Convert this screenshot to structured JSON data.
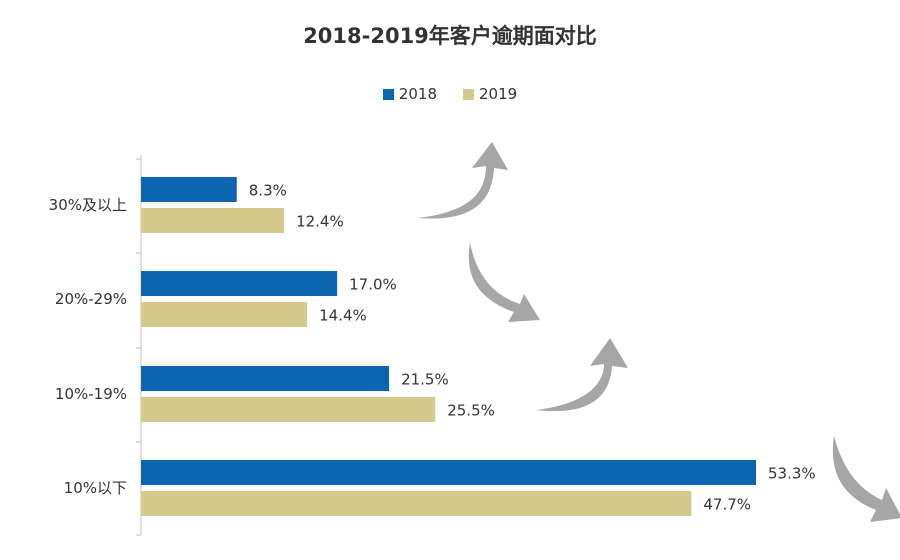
{
  "chart_data": {
    "type": "bar",
    "orientation": "horizontal",
    "title": "2018-2019年客户逾期面对比",
    "categories": [
      "30%及以上",
      "20%-29%",
      "10%-19%",
      "10%以下"
    ],
    "series": [
      {
        "name": "2018",
        "values": [
          8.3,
          17.0,
          21.5,
          53.3
        ],
        "labels": [
          "8.3%",
          "17.0%",
          "21.5%",
          "53.3%"
        ],
        "color": "#0B65B0"
      },
      {
        "name": "2019",
        "values": [
          12.4,
          14.4,
          25.5,
          47.7
        ],
        "labels": [
          "12.4%",
          "14.4%",
          "25.5%",
          "47.7%"
        ],
        "color": "#D5C98C"
      }
    ],
    "xlim": [
      0,
      60
    ],
    "grid": false,
    "legend_position": "top",
    "trend_arrows": [
      "up",
      "down",
      "up",
      "down"
    ],
    "arrow_color": "#A6A6A6"
  }
}
